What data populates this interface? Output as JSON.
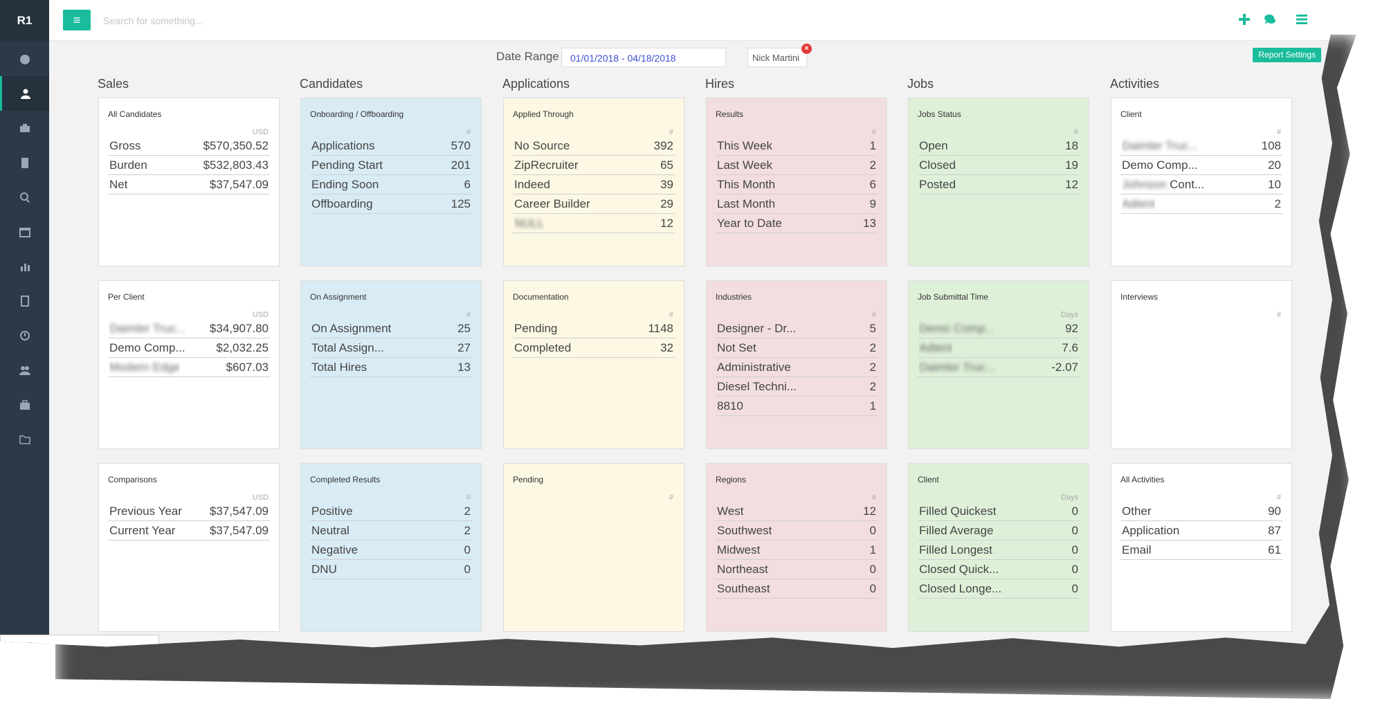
{
  "app": {
    "logo": "R1"
  },
  "sidebar": {
    "items": [
      {
        "icon": "dashboard-icon"
      },
      {
        "icon": "user-icon",
        "active": true
      },
      {
        "icon": "briefcase-icon"
      },
      {
        "icon": "building-icon"
      },
      {
        "icon": "search-icon"
      },
      {
        "icon": "calendar-icon"
      },
      {
        "icon": "bar-chart-icon"
      },
      {
        "icon": "document-icon"
      },
      {
        "icon": "clock-icon"
      },
      {
        "icon": "users-icon"
      },
      {
        "icon": "suitcase-icon"
      },
      {
        "icon": "folder-icon"
      }
    ]
  },
  "topbar": {
    "search_placeholder": "Search for something...",
    "menu_icon": "hamburger-icon",
    "actions": [
      "add-icon",
      "chat-icon",
      "list-icon"
    ]
  },
  "filters": {
    "date_range_label": "Date Range",
    "date_range_value": "01/01/2018 - 04/18/2018",
    "user_filter": "Nick Martini",
    "report_settings": "Report Settings"
  },
  "columns": [
    "Sales",
    "Candidates",
    "Applications",
    "Hires",
    "Jobs",
    "Activities"
  ],
  "cards": [
    {
      "title": "All Candidates",
      "unit": "USD",
      "rows": [
        [
          "Gross",
          "$570,350.52"
        ],
        [
          "Burden",
          "$532,803.43"
        ],
        [
          "Net",
          "$37,547.09"
        ]
      ]
    },
    {
      "title": "Onboarding / Offboarding",
      "unit": "#",
      "rows": [
        [
          "Applications",
          "570"
        ],
        [
          "Pending Start",
          "201"
        ],
        [
          "Ending Soon",
          "6"
        ],
        [
          "Offboarding",
          "125"
        ]
      ]
    },
    {
      "title": "Applied Through",
      "unit": "#",
      "rows": [
        [
          "No Source",
          "392"
        ],
        [
          "ZipRecruiter",
          "65"
        ],
        [
          "Indeed",
          "39"
        ],
        [
          "Career Builder",
          "29"
        ],
        [
          "NULL",
          "12"
        ]
      ]
    },
    {
      "title": "Results",
      "unit": "#",
      "rows": [
        [
          "This Week",
          "1"
        ],
        [
          "Last Week",
          "2"
        ],
        [
          "This Month",
          "6"
        ],
        [
          "Last Month",
          "9"
        ],
        [
          "Year to Date",
          "13"
        ]
      ]
    },
    {
      "title": "Jobs Status",
      "unit": "#",
      "rows": [
        [
          "Open",
          "18"
        ],
        [
          "Closed",
          "19"
        ],
        [
          "Posted",
          "12"
        ]
      ]
    },
    {
      "title": "Client",
      "unit": "#",
      "rows": [
        [
          "Daimler Truc...",
          "108"
        ],
        [
          "Demo Comp...",
          "20"
        ],
        [
          "Johnson Cont...",
          "10"
        ],
        [
          "Adient",
          "2"
        ]
      ]
    },
    {
      "title": "Per Client",
      "unit": "USD",
      "rows": [
        [
          "Daimler Truc...",
          "$34,907.80"
        ],
        [
          "Demo Comp...",
          "$2,032.25"
        ],
        [
          "Modern Edge",
          "$607.03"
        ]
      ]
    },
    {
      "title": "On Assignment",
      "unit": "#",
      "rows": [
        [
          "On Assignment",
          "25"
        ],
        [
          "Total Assign...",
          "27"
        ],
        [
          "Total Hires",
          "13"
        ]
      ]
    },
    {
      "title": "Documentation",
      "unit": "#",
      "rows": [
        [
          "Pending",
          "1148"
        ],
        [
          "Completed",
          "32"
        ]
      ]
    },
    {
      "title": "Industries",
      "unit": "#",
      "rows": [
        [
          "Designer - Dr...",
          "5"
        ],
        [
          "Not Set",
          "2"
        ],
        [
          "Administrative",
          "2"
        ],
        [
          "Diesel Techni...",
          "2"
        ],
        [
          "8810",
          "1"
        ]
      ]
    },
    {
      "title": "Job Submittal Time",
      "unit": "Days",
      "rows": [
        [
          "Demo Comp...",
          "92"
        ],
        [
          "Adient",
          "7.6"
        ],
        [
          "Daimler Truc...",
          "-2.07"
        ]
      ]
    },
    {
      "title": "Interviews",
      "unit": "#",
      "rows": []
    },
    {
      "title": "Comparisons",
      "unit": "USD",
      "rows": [
        [
          "Previous Year",
          "$37,547.09"
        ],
        [
          "Current Year",
          "$37,547.09"
        ]
      ]
    },
    {
      "title": "Completed Results",
      "unit": "#",
      "rows": [
        [
          "Positive",
          "2"
        ],
        [
          "Neutral",
          "2"
        ],
        [
          "Negative",
          "0"
        ],
        [
          "DNU",
          "0"
        ]
      ]
    },
    {
      "title": "Pending",
      "unit": "#",
      "rows": []
    },
    {
      "title": "Regions",
      "unit": "#",
      "rows": [
        [
          "West",
          "12"
        ],
        [
          "Southwest",
          "0"
        ],
        [
          "Midwest",
          "1"
        ],
        [
          "Northeast",
          "0"
        ],
        [
          "Southeast",
          "0"
        ]
      ]
    },
    {
      "title": "Client",
      "unit": "Days",
      "rows": [
        [
          "Filled Quickest",
          "0"
        ],
        [
          "Filled Average",
          "0"
        ],
        [
          "Filled Longest",
          "0"
        ],
        [
          "Closed Quick...",
          "0"
        ],
        [
          "Closed Longe...",
          "0"
        ]
      ]
    },
    {
      "title": "All Activities",
      "unit": "#",
      "rows": [
        [
          "Other",
          "90"
        ],
        [
          "Application",
          "87"
        ],
        [
          "Email",
          "61"
        ]
      ]
    }
  ],
  "bottom_tab": "Assign"
}
